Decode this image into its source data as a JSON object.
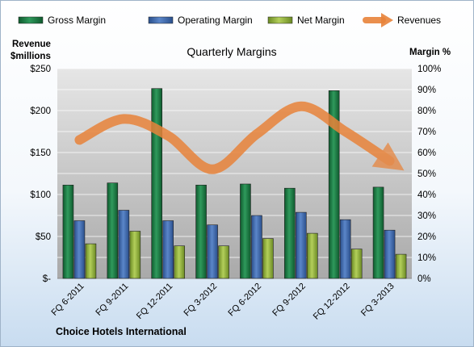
{
  "chart_data": {
    "type": "bar",
    "title": "Quarterly Margins",
    "left_axis_label": [
      "Revenue",
      "$millions"
    ],
    "right_axis_label": "Margin %",
    "categories": [
      "FQ 6-2011",
      "FQ 9-2011",
      "FQ 12-2011",
      "FQ 3-2012",
      "FQ 6-2012",
      "FQ 9-2012",
      "FQ 12-2012",
      "FQ 3-2013"
    ],
    "left_ticks": [
      "$-",
      "$50",
      "$100",
      "$150",
      "$200",
      "$250"
    ],
    "right_ticks": [
      "0%",
      "10%",
      "20%",
      "30%",
      "40%",
      "50%",
      "60%",
      "70%",
      "80%",
      "90%",
      "100%"
    ],
    "left_ylim": [
      0,
      250
    ],
    "right_ylim": [
      0,
      100
    ],
    "series": [
      {
        "name": "Gross Margin",
        "axis": "right",
        "unit": "%",
        "color": "#1e7b46",
        "values": [
          44.5,
          45.5,
          90.5,
          44.5,
          45,
          43,
          89.5,
          43.5
        ]
      },
      {
        "name": "Operating Margin",
        "axis": "right",
        "unit": "%",
        "color": "#3d6ab0",
        "values": [
          27.5,
          32.5,
          27.5,
          25.5,
          30,
          31.5,
          28,
          23
        ]
      },
      {
        "name": "Net Margin",
        "axis": "right",
        "unit": "%",
        "color": "#8fae3c",
        "values": [
          16.5,
          22.5,
          15.5,
          15.5,
          19,
          21.5,
          14,
          11.5
        ]
      },
      {
        "name": "Revenues",
        "axis": "left",
        "unit": "$millions",
        "color": "#e8833a",
        "values": [
          165,
          190,
          170,
          130,
          172,
          205,
          175,
          140
        ]
      }
    ],
    "legend_position": "top",
    "grid": true,
    "caption": "Choice Hotels International"
  }
}
